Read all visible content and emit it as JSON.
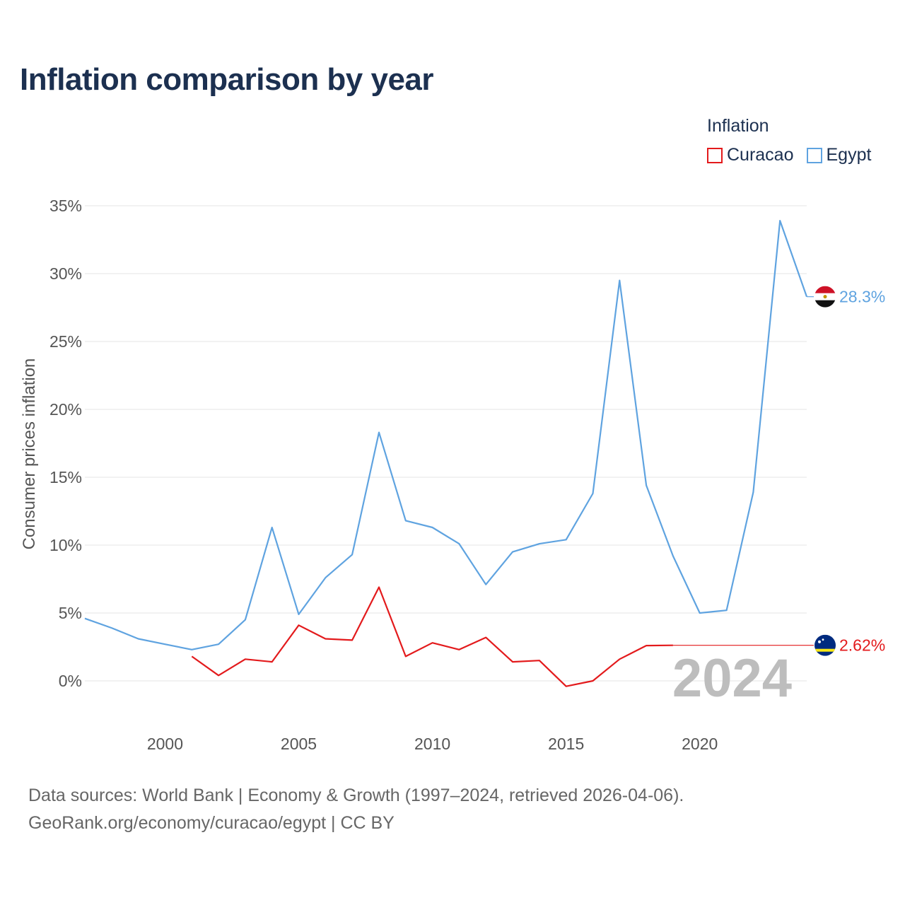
{
  "title": "Inflation comparison by year",
  "legend": {
    "title": "Inflation",
    "items": [
      {
        "label": "Curacao",
        "color": "#e31a1c"
      },
      {
        "label": "Egypt",
        "color": "#5fa3e0"
      }
    ]
  },
  "footer": {
    "line1": "Data sources: World Bank | Economy & Growth (1997–2024, retrieved 2026-04-06).",
    "line2": "GeoRank.org/economy/curacao/egypt | CC BY"
  },
  "chart_data": {
    "type": "line",
    "title": "Inflation comparison by year",
    "ylabel": "Consumer prices inflation",
    "xlabel": "",
    "xlim": [
      1997,
      2024
    ],
    "ylim": [
      -2.5,
      35
    ],
    "x_ticks": [
      2000,
      2005,
      2010,
      2015,
      2020
    ],
    "y_ticks": [
      0,
      5,
      10,
      15,
      20,
      25,
      30,
      35
    ],
    "y_tick_labels": [
      "0%",
      "5%",
      "10%",
      "15%",
      "20%",
      "25%",
      "30%",
      "35%"
    ],
    "grid": true,
    "current_year": "2024",
    "series": [
      {
        "name": "Egypt",
        "color": "#5fa3e0",
        "end_label": "28.3%",
        "x": [
          1997,
          1998,
          1999,
          2000,
          2001,
          2002,
          2003,
          2004,
          2005,
          2006,
          2007,
          2008,
          2009,
          2010,
          2011,
          2012,
          2013,
          2014,
          2015,
          2016,
          2017,
          2018,
          2019,
          2020,
          2021,
          2022,
          2023,
          2024
        ],
        "values": [
          4.6,
          3.9,
          3.1,
          2.7,
          2.3,
          2.7,
          4.5,
          11.3,
          4.9,
          7.6,
          9.3,
          18.3,
          11.8,
          11.3,
          10.1,
          7.1,
          9.5,
          10.1,
          10.4,
          13.8,
          29.5,
          14.4,
          9.2,
          5.0,
          5.2,
          13.9,
          33.9,
          28.3
        ]
      },
      {
        "name": "Curacao",
        "color": "#e31a1c",
        "end_label": "2.62%",
        "x": [
          2001,
          2002,
          2003,
          2004,
          2005,
          2006,
          2007,
          2008,
          2009,
          2010,
          2011,
          2012,
          2013,
          2014,
          2015,
          2016,
          2017,
          2018,
          2019
        ],
        "values": [
          1.8,
          0.4,
          1.6,
          1.4,
          4.1,
          3.1,
          3.0,
          6.9,
          1.8,
          2.8,
          2.3,
          3.2,
          1.4,
          1.5,
          -0.4,
          0.0,
          1.6,
          2.6,
          2.62
        ],
        "carried_to": 2024
      }
    ]
  }
}
